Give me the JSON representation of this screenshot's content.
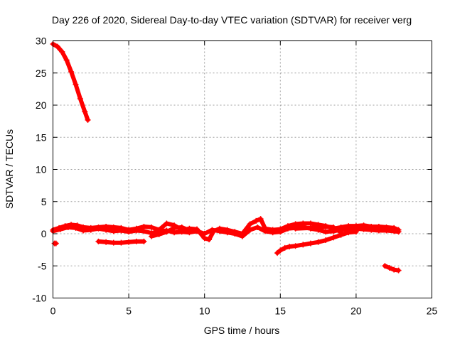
{
  "chart_data": {
    "type": "scatter",
    "title": "Day 226 of 2020, Sidereal Day-to-day VTEC variation (SDTVAR) for receiver verg",
    "xlabel": "GPS time / hours",
    "ylabel": "SDTVAR / TECUs",
    "xlim": [
      0,
      25
    ],
    "ylim": [
      -10,
      30
    ],
    "grid": true,
    "x_ticks": [
      0,
      5,
      10,
      15,
      20,
      25
    ],
    "y_ticks": [
      -10,
      -5,
      0,
      5,
      10,
      15,
      20,
      25,
      30
    ],
    "x_tick_labels": [
      "0",
      "5",
      "10",
      "15",
      "20",
      "25"
    ],
    "y_tick_labels": [
      "-10",
      "-5",
      "0",
      "5",
      "10",
      "15",
      "20",
      "25",
      "30"
    ],
    "marker": "plus",
    "series": [
      {
        "name": "SDTVAR",
        "color": "#ff0000",
        "segments": [
          [
            [
              0.0,
              29.5
            ],
            [
              0.3,
              29.1
            ],
            [
              0.6,
              28.3
            ],
            [
              0.9,
              27.0
            ],
            [
              1.2,
              25.2
            ],
            [
              1.5,
              23.2
            ],
            [
              1.8,
              21.0
            ],
            [
              2.1,
              19.0
            ],
            [
              2.3,
              17.7
            ]
          ],
          [
            [
              0.1,
              -1.5
            ],
            [
              0.2,
              -1.5
            ]
          ],
          [
            [
              0.0,
              0.6
            ],
            [
              0.4,
              0.9
            ],
            [
              0.8,
              1.2
            ],
            [
              1.2,
              1.4
            ],
            [
              1.6,
              1.3
            ],
            [
              2.0,
              1.0
            ],
            [
              2.5,
              0.9
            ],
            [
              3.0,
              1.0
            ],
            [
              3.5,
              1.1
            ],
            [
              4.0,
              1.0
            ],
            [
              4.5,
              0.9
            ],
            [
              5.0,
              0.6
            ],
            [
              5.5,
              0.8
            ],
            [
              6.0,
              1.1
            ],
            [
              6.5,
              1.0
            ],
            [
              7.0,
              0.6
            ],
            [
              7.5,
              1.6
            ],
            [
              8.0,
              1.3
            ],
            [
              8.5,
              0.6
            ],
            [
              9.0,
              0.8
            ],
            [
              9.5,
              0.7
            ],
            [
              10.0,
              -0.7
            ],
            [
              10.3,
              -0.9
            ],
            [
              10.6,
              0.4
            ],
            [
              11.0,
              0.8
            ],
            [
              11.5,
              0.6
            ],
            [
              12.0,
              0.3
            ],
            [
              12.5,
              0.0
            ],
            [
              13.0,
              1.5
            ],
            [
              13.4,
              2.0
            ],
            [
              13.7,
              2.3
            ],
            [
              14.0,
              0.8
            ],
            [
              14.5,
              0.6
            ],
            [
              15.0,
              0.7
            ],
            [
              15.5,
              1.2
            ],
            [
              16.0,
              1.5
            ],
            [
              16.5,
              1.6
            ],
            [
              17.0,
              1.6
            ],
            [
              17.5,
              1.4
            ],
            [
              18.0,
              1.2
            ],
            [
              18.5,
              0.8
            ],
            [
              19.0,
              1.0
            ],
            [
              19.5,
              1.2
            ],
            [
              20.0,
              1.2
            ],
            [
              20.5,
              1.3
            ],
            [
              21.0,
              1.1
            ],
            [
              21.5,
              1.1
            ],
            [
              22.0,
              1.0
            ],
            [
              22.5,
              0.9
            ],
            [
              22.8,
              0.6
            ]
          ],
          [
            [
              0.0,
              0.4
            ],
            [
              0.5,
              0.7
            ],
            [
              1.0,
              1.0
            ],
            [
              1.5,
              0.9
            ],
            [
              2.0,
              0.5
            ],
            [
              2.5,
              0.6
            ],
            [
              3.0,
              0.8
            ],
            [
              3.5,
              0.6
            ],
            [
              4.0,
              0.4
            ],
            [
              4.5,
              0.5
            ],
            [
              5.0,
              0.3
            ],
            [
              5.5,
              0.5
            ],
            [
              6.0,
              0.4
            ],
            [
              6.5,
              0.1
            ],
            [
              7.0,
              0.4
            ],
            [
              7.5,
              0.5
            ],
            [
              8.0,
              0.2
            ],
            [
              8.5,
              0.3
            ],
            [
              9.0,
              0.2
            ],
            [
              9.5,
              0.4
            ],
            [
              10.0,
              0.0
            ],
            [
              10.5,
              0.6
            ],
            [
              11.0,
              0.4
            ],
            [
              11.5,
              0.2
            ],
            [
              12.0,
              0.0
            ],
            [
              12.5,
              -0.4
            ],
            [
              13.0,
              0.6
            ],
            [
              13.5,
              1.0
            ],
            [
              14.0,
              0.4
            ],
            [
              14.5,
              0.2
            ],
            [
              15.0,
              0.3
            ],
            [
              15.5,
              0.8
            ],
            [
              16.0,
              0.9
            ],
            [
              16.5,
              1.0
            ],
            [
              17.0,
              0.8
            ],
            [
              17.5,
              0.6
            ],
            [
              18.0,
              0.3
            ],
            [
              18.5,
              0.4
            ],
            [
              19.0,
              0.6
            ],
            [
              19.5,
              0.7
            ],
            [
              20.0,
              0.8
            ],
            [
              20.5,
              0.7
            ],
            [
              21.0,
              0.6
            ],
            [
              21.5,
              0.5
            ],
            [
              22.0,
              0.5
            ],
            [
              22.5,
              0.4
            ],
            [
              22.8,
              0.3
            ]
          ],
          [
            [
              6.5,
              -0.4
            ],
            [
              7.0,
              -0.1
            ],
            [
              7.5,
              0.3
            ],
            [
              8.0,
              0.9
            ],
            [
              8.5,
              1.0
            ],
            [
              9.0,
              0.5
            ]
          ],
          [
            [
              16.0,
              0.8
            ],
            [
              17.0,
              0.9
            ],
            [
              18.0,
              1.1
            ],
            [
              18.5,
              1.0
            ],
            [
              19.0,
              0.2
            ]
          ],
          [
            [
              3.0,
              -1.2
            ],
            [
              3.5,
              -1.3
            ],
            [
              4.0,
              -1.4
            ],
            [
              4.5,
              -1.4
            ],
            [
              5.0,
              -1.3
            ],
            [
              5.5,
              -1.2
            ],
            [
              6.0,
              -1.2
            ]
          ],
          [
            [
              14.8,
              -3.0
            ],
            [
              15.0,
              -2.6
            ],
            [
              15.3,
              -2.2
            ],
            [
              15.6,
              -2.0
            ],
            [
              16.0,
              -1.9
            ],
            [
              16.5,
              -1.7
            ],
            [
              17.0,
              -1.5
            ],
            [
              17.5,
              -1.3
            ],
            [
              18.0,
              -1.0
            ],
            [
              18.5,
              -0.6
            ],
            [
              19.0,
              -0.2
            ],
            [
              19.5,
              0.2
            ],
            [
              20.0,
              0.3
            ]
          ],
          [
            [
              21.9,
              -5.0
            ],
            [
              22.2,
              -5.3
            ],
            [
              22.5,
              -5.6
            ],
            [
              22.8,
              -5.7
            ]
          ]
        ]
      }
    ]
  }
}
